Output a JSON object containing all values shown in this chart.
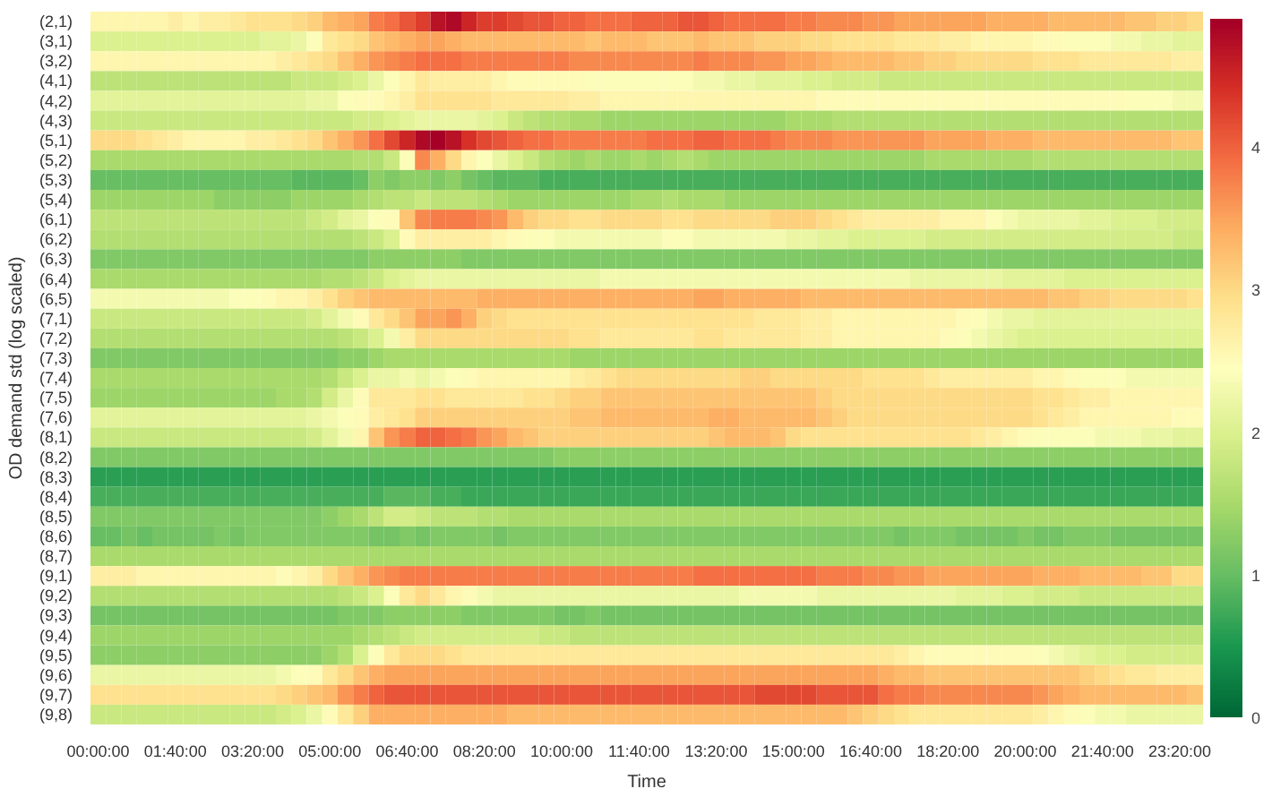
{
  "chart_data": {
    "type": "heatmap",
    "xlabel": "Time",
    "ylabel": "OD demand std (log scaled)",
    "categories": [
      "00:00:00",
      null,
      null,
      null,
      null,
      "01:40:00",
      null,
      null,
      null,
      null,
      "03:20:00",
      null,
      null,
      null,
      null,
      "05:00:00",
      null,
      null,
      null,
      null,
      "06:40:00",
      null,
      null,
      null,
      null,
      "08:20:00",
      null,
      null,
      null,
      null,
      "10:00:00",
      null,
      null,
      null,
      null,
      "11:40:00",
      null,
      null,
      null,
      null,
      "13:20:00",
      null,
      null,
      null,
      null,
      "15:00:00",
      null,
      null,
      null,
      null,
      "16:40:00",
      null,
      null,
      null,
      null,
      "18:20:00",
      null,
      null,
      null,
      null,
      "20:00:00",
      null,
      null,
      null,
      null,
      "21:40:00",
      null,
      null,
      null,
      null,
      "23:20:00",
      null
    ],
    "y_categories": [
      "(2,1)",
      "(3,1)",
      "(3,2)",
      "(4,1)",
      "(4,2)",
      "(4,3)",
      "(5,1)",
      "(5,2)",
      "(5,3)",
      "(5,4)",
      "(6,1)",
      "(6,2)",
      "(6,3)",
      "(6,4)",
      "(6,5)",
      "(7,1)",
      "(7,2)",
      "(7,3)",
      "(7,4)",
      "(7,5)",
      "(7,6)",
      "(8,1)",
      "(8,2)",
      "(8,3)",
      "(8,4)",
      "(8,5)",
      "(8,6)",
      "(8,7)",
      "(9,1)",
      "(9,2)",
      "(9,3)",
      "(9,4)",
      "(9,5)",
      "(9,6)",
      "(9,7)",
      "(9,8)"
    ],
    "clim": [
      0,
      4.9
    ],
    "cticks": [
      0,
      1,
      2,
      3,
      4
    ],
    "grid": false,
    "cells": [
      [
        2.6,
        2.6,
        2.6,
        2.6,
        2.6,
        2.7,
        2.6,
        2.7,
        2.7,
        2.8,
        2.9,
        2.9,
        2.9,
        3.0,
        3.1,
        3.3,
        3.4,
        3.5,
        3.8,
        3.9,
        4.1,
        4.3,
        4.7,
        4.8,
        4.5,
        4.3,
        4.3,
        4.2,
        4.1,
        4.1,
        4.0,
        4.0,
        3.9,
        3.9,
        3.9,
        4.0,
        4.0,
        4.0,
        4.1,
        4.1,
        4.0,
        3.9,
        3.9,
        3.9,
        3.9,
        3.8,
        3.8,
        3.7,
        3.7,
        3.7,
        3.6,
        3.6,
        3.5,
        3.5,
        3.5,
        3.5,
        3.5,
        3.5,
        3.4,
        3.4,
        3.4,
        3.4,
        3.3,
        3.3,
        3.3,
        3.3,
        3.3,
        3.2,
        3.2,
        3.1,
        3.1,
        3.0
      ],
      [
        2.0,
        2.0,
        2.0,
        2.0,
        2.0,
        2.0,
        2.0,
        2.0,
        2.0,
        2.0,
        2.0,
        2.1,
        2.1,
        2.2,
        2.4,
        2.8,
        2.9,
        3.0,
        3.2,
        3.3,
        3.4,
        3.5,
        3.5,
        3.4,
        3.3,
        3.3,
        3.3,
        3.3,
        3.3,
        3.3,
        3.3,
        3.3,
        3.2,
        3.3,
        3.3,
        3.3,
        3.2,
        3.2,
        3.2,
        3.3,
        3.2,
        3.2,
        3.2,
        3.1,
        3.1,
        3.1,
        3.0,
        3.0,
        2.9,
        2.9,
        2.9,
        2.9,
        2.8,
        2.8,
        2.8,
        2.7,
        2.7,
        2.6,
        2.6,
        2.6,
        2.6,
        2.5,
        2.5,
        2.4,
        2.4,
        2.4,
        2.3,
        2.3,
        2.2,
        2.2,
        2.1,
        2.1
      ],
      [
        2.6,
        2.6,
        2.6,
        2.6,
        2.6,
        2.6,
        2.6,
        2.6,
        2.6,
        2.6,
        2.6,
        2.6,
        2.7,
        2.8,
        2.9,
        3.0,
        3.2,
        3.4,
        3.6,
        3.7,
        3.8,
        3.9,
        3.9,
        3.9,
        3.8,
        3.8,
        3.8,
        3.8,
        3.8,
        3.8,
        3.8,
        3.7,
        3.7,
        3.7,
        3.7,
        3.7,
        3.7,
        3.7,
        3.7,
        3.8,
        3.7,
        3.7,
        3.7,
        3.6,
        3.6,
        3.5,
        3.5,
        3.4,
        3.3,
        3.3,
        3.3,
        3.3,
        3.2,
        3.2,
        3.1,
        3.1,
        3.0,
        3.0,
        3.0,
        3.0,
        3.0,
        2.9,
        2.9,
        2.9,
        2.8,
        2.8,
        2.8,
        2.8,
        2.8,
        2.8,
        2.7,
        2.7
      ],
      [
        1.7,
        1.7,
        1.7,
        1.7,
        1.7,
        1.7,
        1.7,
        1.7,
        1.7,
        1.7,
        1.7,
        1.7,
        1.7,
        1.8,
        1.8,
        1.8,
        1.9,
        2.0,
        2.2,
        2.4,
        2.6,
        2.8,
        2.7,
        2.7,
        2.7,
        2.7,
        2.6,
        2.5,
        2.5,
        2.5,
        2.5,
        2.5,
        2.4,
        2.4,
        2.4,
        2.4,
        2.4,
        2.4,
        2.4,
        2.3,
        2.3,
        2.2,
        2.2,
        2.1,
        2.1,
        2.1,
        2.0,
        2.0,
        1.9,
        1.9,
        1.9,
        1.8,
        1.8,
        1.8,
        1.8,
        1.8,
        1.8,
        1.8,
        1.8,
        1.8,
        1.8,
        1.8,
        1.8,
        1.8,
        1.8,
        1.8,
        1.8,
        1.8,
        1.8,
        1.8,
        1.8,
        1.8
      ],
      [
        2.1,
        2.1,
        2.1,
        2.1,
        2.1,
        2.1,
        2.1,
        2.1,
        2.1,
        2.1,
        2.1,
        2.1,
        2.1,
        2.1,
        2.2,
        2.2,
        2.4,
        2.5,
        2.5,
        2.6,
        2.7,
        2.9,
        2.9,
        2.9,
        2.9,
        2.9,
        2.8,
        2.8,
        2.8,
        2.8,
        2.8,
        2.7,
        2.7,
        2.6,
        2.6,
        2.6,
        2.6,
        2.6,
        2.6,
        2.6,
        2.6,
        2.6,
        2.6,
        2.6,
        2.6,
        2.6,
        2.6,
        2.5,
        2.5,
        2.5,
        2.5,
        2.5,
        2.5,
        2.5,
        2.5,
        2.5,
        2.5,
        2.5,
        2.5,
        2.5,
        2.5,
        2.5,
        2.5,
        2.5,
        2.5,
        2.5,
        2.5,
        2.4,
        2.4,
        2.4,
        2.3,
        2.3
      ],
      [
        1.8,
        1.8,
        1.8,
        1.8,
        1.8,
        1.8,
        1.8,
        1.8,
        1.8,
        1.8,
        1.8,
        1.8,
        1.8,
        1.8,
        1.8,
        1.8,
        1.8,
        1.9,
        1.9,
        2.0,
        2.1,
        2.2,
        2.2,
        2.2,
        2.2,
        2.1,
        2.0,
        1.8,
        1.7,
        1.6,
        1.6,
        1.5,
        1.5,
        1.4,
        1.4,
        1.4,
        1.4,
        1.4,
        1.4,
        1.4,
        1.4,
        1.4,
        1.4,
        1.4,
        1.4,
        1.5,
        1.5,
        1.5,
        1.6,
        1.6,
        1.6,
        1.6,
        1.6,
        1.6,
        1.6,
        1.6,
        1.6,
        1.6,
        1.6,
        1.6,
        1.6,
        1.6,
        1.6,
        1.6,
        1.6,
        1.6,
        1.6,
        1.6,
        1.6,
        1.6,
        1.6,
        1.6
      ],
      [
        3.0,
        3.0,
        3.0,
        2.9,
        2.8,
        2.7,
        2.6,
        2.6,
        2.6,
        2.6,
        2.7,
        2.7,
        2.8,
        2.9,
        3.0,
        3.2,
        3.4,
        3.6,
        3.9,
        4.2,
        4.5,
        4.8,
        4.9,
        4.7,
        4.4,
        4.2,
        4.1,
        4.0,
        3.9,
        3.9,
        3.8,
        3.8,
        3.8,
        3.8,
        3.8,
        3.8,
        3.9,
        3.9,
        3.9,
        4.0,
        4.0,
        3.9,
        3.9,
        3.9,
        3.8,
        3.7,
        3.7,
        3.7,
        3.6,
        3.6,
        3.6,
        3.6,
        3.6,
        3.6,
        3.5,
        3.5,
        3.5,
        3.5,
        3.4,
        3.4,
        3.4,
        3.3,
        3.3,
        3.3,
        3.3,
        3.3,
        3.3,
        3.3,
        3.3,
        3.3,
        3.2,
        3.2
      ],
      [
        1.5,
        1.5,
        1.5,
        1.5,
        1.5,
        1.5,
        1.5,
        1.5,
        1.5,
        1.5,
        1.5,
        1.5,
        1.5,
        1.5,
        1.5,
        1.5,
        1.5,
        1.6,
        1.6,
        1.8,
        2.4,
        3.7,
        3.4,
        3.0,
        2.6,
        2.4,
        2.2,
        2.0,
        1.8,
        1.6,
        1.5,
        1.4,
        1.5,
        1.4,
        1.4,
        1.5,
        1.4,
        1.5,
        1.6,
        1.5,
        1.4,
        1.4,
        1.4,
        1.4,
        1.4,
        1.4,
        1.4,
        1.4,
        1.4,
        1.4,
        1.4,
        1.4,
        1.4,
        1.4,
        1.5,
        1.5,
        1.5,
        1.5,
        1.5,
        1.5,
        1.5,
        1.6,
        1.6,
        1.6,
        1.6,
        1.6,
        1.6,
        1.6,
        1.6,
        1.6,
        1.6,
        1.6
      ],
      [
        1.0,
        1.0,
        1.0,
        1.0,
        1.0,
        1.0,
        1.0,
        1.0,
        1.0,
        1.0,
        1.0,
        1.0,
        1.0,
        0.9,
        0.9,
        0.9,
        0.9,
        1.0,
        1.3,
        1.2,
        1.3,
        1.3,
        1.2,
        1.3,
        1.1,
        1.0,
        0.9,
        0.9,
        0.9,
        0.8,
        0.8,
        0.8,
        0.8,
        0.8,
        0.8,
        0.8,
        0.8,
        0.8,
        0.8,
        0.8,
        0.8,
        0.8,
        0.8,
        0.8,
        0.8,
        0.8,
        0.8,
        0.8,
        0.8,
        0.8,
        0.8,
        0.8,
        0.8,
        0.8,
        0.8,
        0.8,
        0.8,
        0.8,
        0.8,
        0.8,
        0.8,
        0.8,
        0.8,
        0.8,
        0.8,
        0.8,
        0.8,
        0.8,
        0.8,
        0.8,
        0.8,
        0.8
      ],
      [
        1.4,
        1.4,
        1.4,
        1.4,
        1.4,
        1.4,
        1.4,
        1.4,
        1.3,
        1.3,
        1.3,
        1.3,
        1.3,
        1.4,
        1.4,
        1.4,
        1.4,
        1.5,
        1.6,
        1.7,
        1.7,
        1.8,
        1.7,
        1.7,
        1.7,
        1.6,
        1.5,
        1.4,
        1.4,
        1.4,
        1.4,
        1.4,
        1.4,
        1.4,
        1.4,
        1.5,
        1.5,
        1.6,
        1.5,
        1.5,
        1.5,
        1.4,
        1.4,
        1.4,
        1.4,
        1.4,
        1.4,
        1.4,
        1.4,
        1.4,
        1.4,
        1.4,
        1.4,
        1.4,
        1.4,
        1.4,
        1.4,
        1.4,
        1.4,
        1.4,
        1.4,
        1.4,
        1.4,
        1.4,
        1.4,
        1.4,
        1.4,
        1.4,
        1.4,
        1.4,
        1.4,
        1.4
      ],
      [
        1.7,
        1.7,
        1.7,
        1.7,
        1.7,
        1.7,
        1.7,
        1.7,
        1.7,
        1.7,
        1.7,
        1.7,
        1.7,
        1.7,
        1.8,
        1.9,
        2.1,
        2.2,
        2.4,
        2.5,
        3.2,
        3.7,
        3.8,
        3.8,
        3.8,
        3.7,
        3.6,
        3.3,
        3.1,
        3.0,
        3.0,
        2.9,
        2.9,
        3.0,
        3.0,
        3.0,
        3.0,
        2.9,
        2.9,
        3.0,
        3.0,
        3.0,
        3.0,
        3.0,
        3.1,
        3.1,
        3.1,
        3.0,
        2.9,
        2.8,
        2.7,
        2.7,
        2.7,
        2.7,
        2.7,
        2.6,
        2.6,
        2.6,
        2.4,
        2.3,
        2.2,
        2.2,
        2.2,
        2.2,
        2.1,
        2.1,
        2.0,
        2.0,
        2.0,
        1.9,
        1.9,
        1.9
      ],
      [
        1.6,
        1.6,
        1.6,
        1.6,
        1.6,
        1.6,
        1.6,
        1.6,
        1.6,
        1.6,
        1.6,
        1.6,
        1.6,
        1.6,
        1.6,
        1.6,
        1.6,
        1.7,
        1.8,
        2.0,
        2.5,
        2.7,
        2.7,
        2.7,
        2.7,
        2.7,
        2.6,
        2.5,
        2.4,
        2.4,
        2.3,
        2.3,
        2.3,
        2.3,
        2.3,
        2.3,
        2.3,
        2.4,
        2.4,
        2.3,
        2.3,
        2.3,
        2.3,
        2.3,
        2.3,
        2.2,
        2.2,
        2.1,
        2.1,
        2.0,
        2.0,
        2.0,
        2.0,
        2.0,
        1.9,
        1.9,
        1.9,
        1.9,
        1.9,
        1.9,
        1.9,
        1.9,
        1.9,
        1.9,
        1.9,
        1.9,
        1.9,
        1.9,
        1.9,
        1.9,
        1.8,
        1.8
      ],
      [
        1.2,
        1.2,
        1.2,
        1.2,
        1.2,
        1.2,
        1.2,
        1.2,
        1.2,
        1.2,
        1.2,
        1.2,
        1.2,
        1.2,
        1.2,
        1.2,
        1.2,
        1.2,
        1.3,
        1.3,
        1.3,
        1.3,
        1.3,
        1.3,
        1.2,
        1.2,
        1.2,
        1.2,
        1.2,
        1.2,
        1.2,
        1.2,
        1.2,
        1.2,
        1.2,
        1.2,
        1.2,
        1.2,
        1.2,
        1.2,
        1.2,
        1.2,
        1.2,
        1.2,
        1.2,
        1.2,
        1.2,
        1.2,
        1.2,
        1.2,
        1.2,
        1.2,
        1.2,
        1.2,
        1.2,
        1.2,
        1.2,
        1.2,
        1.2,
        1.2,
        1.2,
        1.2,
        1.2,
        1.2,
        1.2,
        1.2,
        1.2,
        1.2,
        1.2,
        1.2,
        1.2,
        1.2
      ],
      [
        1.5,
        1.5,
        1.5,
        1.5,
        1.5,
        1.5,
        1.5,
        1.5,
        1.5,
        1.5,
        1.5,
        1.5,
        1.5,
        1.5,
        1.5,
        1.6,
        1.6,
        1.7,
        1.8,
        2.0,
        2.1,
        2.2,
        2.2,
        2.2,
        2.2,
        2.2,
        2.2,
        2.2,
        2.2,
        2.2,
        2.2,
        2.2,
        2.2,
        2.3,
        2.3,
        2.3,
        2.3,
        2.3,
        2.3,
        2.3,
        2.3,
        2.3,
        2.3,
        2.3,
        2.3,
        2.3,
        2.3,
        2.3,
        2.3,
        2.3,
        2.3,
        2.3,
        2.3,
        2.2,
        2.2,
        2.2,
        2.2,
        2.2,
        2.2,
        2.1,
        2.1,
        2.1,
        2.1,
        2.0,
        2.0,
        2.0,
        2.0,
        2.0,
        2.0,
        2.0,
        2.0,
        2.0
      ],
      [
        2.3,
        2.3,
        2.3,
        2.3,
        2.3,
        2.3,
        2.3,
        2.3,
        2.3,
        2.4,
        2.4,
        2.5,
        2.6,
        2.6,
        2.7,
        2.9,
        3.1,
        3.2,
        3.3,
        3.3,
        3.3,
        3.3,
        3.3,
        3.3,
        3.3,
        3.4,
        3.4,
        3.4,
        3.4,
        3.4,
        3.4,
        3.4,
        3.4,
        3.4,
        3.4,
        3.4,
        3.4,
        3.4,
        3.4,
        3.5,
        3.5,
        3.4,
        3.4,
        3.4,
        3.4,
        3.4,
        3.3,
        3.3,
        3.3,
        3.3,
        3.3,
        3.3,
        3.3,
        3.3,
        3.3,
        3.3,
        3.3,
        3.3,
        3.3,
        3.3,
        3.3,
        3.3,
        3.2,
        3.2,
        3.1,
        3.1,
        3.0,
        3.0,
        3.0,
        3.0,
        3.0,
        2.9
      ],
      [
        1.8,
        1.8,
        1.8,
        1.8,
        1.8,
        1.8,
        1.8,
        1.8,
        1.8,
        1.8,
        1.8,
        1.8,
        1.8,
        1.8,
        1.9,
        2.1,
        2.3,
        2.5,
        2.8,
        3.0,
        3.2,
        3.5,
        3.5,
        3.6,
        3.4,
        3.1,
        3.0,
        2.9,
        2.9,
        2.9,
        2.9,
        2.9,
        2.9,
        2.9,
        2.9,
        2.9,
        2.9,
        2.9,
        2.9,
        2.9,
        2.9,
        2.9,
        2.9,
        2.8,
        2.8,
        2.8,
        2.7,
        2.7,
        2.6,
        2.6,
        2.6,
        2.6,
        2.6,
        2.6,
        2.6,
        2.6,
        2.5,
        2.4,
        2.3,
        2.2,
        2.2,
        2.1,
        2.1,
        2.1,
        2.1,
        2.1,
        2.1,
        2.1,
        2.1,
        2.1,
        2.1,
        2.1
      ],
      [
        1.6,
        1.6,
        1.6,
        1.6,
        1.6,
        1.6,
        1.6,
        1.6,
        1.6,
        1.6,
        1.6,
        1.6,
        1.6,
        1.6,
        1.6,
        1.6,
        1.7,
        1.8,
        2.0,
        2.3,
        2.7,
        3.0,
        3.0,
        3.0,
        3.0,
        3.0,
        3.0,
        3.0,
        3.0,
        3.0,
        3.0,
        2.9,
        2.9,
        2.8,
        2.8,
        2.8,
        2.8,
        2.8,
        2.8,
        2.9,
        2.9,
        2.8,
        2.8,
        2.8,
        2.8,
        2.8,
        2.7,
        2.7,
        2.6,
        2.6,
        2.6,
        2.6,
        2.6,
        2.6,
        2.6,
        2.5,
        2.4,
        2.3,
        2.2,
        2.1,
        2.0,
        2.0,
        2.0,
        2.0,
        2.0,
        2.0,
        2.0,
        2.0,
        2.0,
        2.0,
        2.0,
        2.0
      ],
      [
        1.2,
        1.2,
        1.2,
        1.2,
        1.2,
        1.2,
        1.2,
        1.2,
        1.2,
        1.2,
        1.2,
        1.2,
        1.2,
        1.2,
        1.2,
        1.2,
        1.3,
        1.3,
        1.4,
        1.5,
        1.5,
        1.5,
        1.5,
        1.5,
        1.5,
        1.5,
        1.5,
        1.5,
        1.5,
        1.5,
        1.5,
        1.4,
        1.4,
        1.4,
        1.4,
        1.4,
        1.4,
        1.4,
        1.4,
        1.4,
        1.4,
        1.4,
        1.4,
        1.4,
        1.4,
        1.4,
        1.4,
        1.4,
        1.4,
        1.4,
        1.4,
        1.4,
        1.4,
        1.4,
        1.4,
        1.4,
        1.4,
        1.4,
        1.4,
        1.4,
        1.4,
        1.4,
        1.4,
        1.4,
        1.4,
        1.4,
        1.4,
        1.4,
        1.4,
        1.4,
        1.4,
        1.4
      ],
      [
        1.5,
        1.5,
        1.5,
        1.5,
        1.5,
        1.5,
        1.5,
        1.5,
        1.5,
        1.5,
        1.5,
        1.5,
        1.5,
        1.5,
        1.5,
        1.6,
        1.8,
        2.0,
        2.2,
        2.2,
        2.3,
        2.2,
        2.3,
        2.4,
        2.5,
        2.6,
        2.6,
        2.6,
        2.6,
        2.6,
        2.6,
        2.7,
        2.8,
        2.9,
        3.0,
        3.0,
        3.0,
        3.0,
        3.0,
        3.0,
        3.0,
        3.0,
        3.1,
        3.1,
        3.0,
        3.0,
        3.0,
        3.0,
        3.0,
        3.0,
        2.9,
        2.9,
        2.9,
        2.9,
        2.8,
        2.7,
        2.7,
        2.7,
        2.7,
        2.7,
        2.7,
        2.6,
        2.6,
        2.5,
        2.4,
        2.4,
        2.4,
        2.3,
        2.3,
        2.3,
        2.3,
        2.3
      ],
      [
        1.4,
        1.4,
        1.4,
        1.4,
        1.4,
        1.4,
        1.4,
        1.4,
        1.4,
        1.4,
        1.4,
        1.4,
        1.5,
        1.5,
        1.6,
        1.9,
        2.2,
        2.5,
        2.8,
        2.8,
        2.8,
        2.9,
        2.9,
        2.8,
        2.8,
        2.8,
        2.8,
        2.8,
        2.9,
        2.9,
        3.0,
        3.1,
        3.1,
        3.2,
        3.2,
        3.2,
        3.2,
        3.2,
        3.2,
        3.2,
        3.2,
        3.2,
        3.2,
        3.2,
        3.2,
        3.2,
        3.2,
        3.1,
        3.0,
        3.0,
        3.0,
        3.0,
        3.0,
        3.0,
        3.0,
        3.0,
        3.0,
        3.0,
        3.0,
        3.0,
        3.0,
        2.9,
        2.9,
        2.8,
        2.7,
        2.7,
        2.6,
        2.6,
        2.6,
        2.6,
        2.6,
        2.6
      ],
      [
        2.1,
        2.1,
        2.1,
        2.1,
        2.1,
        2.1,
        2.1,
        2.1,
        2.1,
        2.1,
        2.1,
        2.1,
        2.1,
        2.1,
        2.2,
        2.3,
        2.4,
        2.5,
        2.7,
        2.8,
        2.9,
        3.1,
        3.1,
        3.1,
        3.1,
        3.1,
        3.1,
        3.1,
        3.1,
        3.1,
        3.1,
        3.2,
        3.2,
        3.3,
        3.3,
        3.3,
        3.3,
        3.3,
        3.3,
        3.3,
        3.4,
        3.4,
        3.3,
        3.3,
        3.3,
        3.3,
        3.3,
        3.2,
        3.1,
        3.0,
        3.0,
        3.0,
        3.0,
        3.0,
        3.0,
        3.0,
        3.0,
        3.0,
        3.0,
        3.0,
        3.0,
        2.9,
        2.8,
        2.7,
        2.6,
        2.6,
        2.6,
        2.6,
        2.6,
        2.6,
        2.5,
        2.5
      ],
      [
        1.8,
        1.8,
        1.8,
        1.8,
        1.8,
        1.8,
        1.8,
        1.8,
        1.8,
        1.8,
        1.8,
        1.8,
        1.8,
        1.8,
        1.9,
        2.1,
        2.3,
        2.6,
        3.2,
        3.6,
        3.8,
        4.0,
        4.0,
        3.9,
        3.8,
        3.6,
        3.5,
        3.3,
        3.2,
        3.1,
        3.1,
        3.1,
        3.1,
        3.1,
        3.1,
        3.1,
        3.1,
        3.1,
        3.1,
        3.1,
        3.2,
        3.3,
        3.3,
        3.3,
        3.2,
        3.0,
        2.9,
        2.9,
        2.9,
        2.9,
        2.9,
        2.9,
        2.9,
        2.9,
        2.9,
        2.9,
        2.9,
        2.8,
        2.7,
        2.6,
        2.5,
        2.4,
        2.4,
        2.4,
        2.4,
        2.3,
        2.3,
        2.3,
        2.2,
        2.2,
        2.1,
        2.1
      ],
      [
        1.2,
        1.2,
        1.2,
        1.2,
        1.2,
        1.2,
        1.2,
        1.2,
        1.2,
        1.2,
        1.2,
        1.2,
        1.2,
        1.2,
        1.2,
        1.2,
        1.2,
        1.2,
        1.2,
        1.2,
        1.2,
        1.2,
        1.2,
        1.2,
        1.2,
        1.2,
        1.2,
        1.2,
        1.2,
        1.2,
        1.3,
        1.3,
        1.3,
        1.3,
        1.3,
        1.3,
        1.3,
        1.3,
        1.3,
        1.3,
        1.3,
        1.3,
        1.3,
        1.3,
        1.3,
        1.3,
        1.3,
        1.3,
        1.3,
        1.3,
        1.3,
        1.3,
        1.3,
        1.3,
        1.3,
        1.3,
        1.3,
        1.3,
        1.3,
        1.3,
        1.3,
        1.3,
        1.3,
        1.3,
        1.3,
        1.3,
        1.3,
        1.3,
        1.3,
        1.3,
        1.3,
        1.3
      ],
      [
        0.6,
        0.6,
        0.6,
        0.6,
        0.6,
        0.6,
        0.6,
        0.6,
        0.6,
        0.6,
        0.6,
        0.6,
        0.6,
        0.6,
        0.6,
        0.6,
        0.6,
        0.6,
        0.6,
        0.6,
        0.6,
        0.6,
        0.6,
        0.6,
        0.6,
        0.6,
        0.6,
        0.6,
        0.6,
        0.6,
        0.6,
        0.6,
        0.6,
        0.6,
        0.6,
        0.6,
        0.6,
        0.6,
        0.6,
        0.6,
        0.6,
        0.6,
        0.6,
        0.6,
        0.6,
        0.6,
        0.6,
        0.6,
        0.6,
        0.6,
        0.6,
        0.6,
        0.6,
        0.6,
        0.6,
        0.6,
        0.6,
        0.6,
        0.6,
        0.6,
        0.6,
        0.6,
        0.6,
        0.6,
        0.6,
        0.6,
        0.6,
        0.6,
        0.6,
        0.6,
        0.6,
        0.6
      ],
      [
        0.8,
        0.8,
        0.8,
        0.8,
        0.8,
        0.8,
        0.8,
        0.8,
        0.8,
        0.8,
        0.8,
        0.8,
        0.8,
        0.8,
        0.8,
        0.8,
        0.8,
        0.8,
        0.8,
        0.9,
        0.9,
        0.9,
        0.8,
        0.8,
        0.7,
        0.7,
        0.7,
        0.7,
        0.7,
        0.7,
        0.7,
        0.7,
        0.7,
        0.7,
        0.7,
        0.7,
        0.7,
        0.7,
        0.7,
        0.7,
        0.7,
        0.7,
        0.7,
        0.7,
        0.7,
        0.7,
        0.7,
        0.7,
        0.7,
        0.7,
        0.7,
        0.7,
        0.7,
        0.7,
        0.7,
        0.7,
        0.7,
        0.7,
        0.7,
        0.7,
        0.7,
        0.7,
        0.7,
        0.7,
        0.7,
        0.7,
        0.7,
        0.7,
        0.7,
        0.7,
        0.7,
        0.7
      ],
      [
        1.2,
        1.2,
        1.2,
        1.2,
        1.2,
        1.2,
        1.2,
        1.2,
        1.2,
        1.2,
        1.2,
        1.2,
        1.2,
        1.2,
        1.2,
        1.3,
        1.4,
        1.5,
        1.7,
        1.9,
        1.9,
        1.8,
        1.7,
        1.7,
        1.7,
        1.6,
        1.6,
        1.5,
        1.5,
        1.5,
        1.5,
        1.5,
        1.5,
        1.5,
        1.5,
        1.5,
        1.5,
        1.5,
        1.5,
        1.5,
        1.5,
        1.5,
        1.5,
        1.5,
        1.5,
        1.5,
        1.5,
        1.5,
        1.5,
        1.5,
        1.5,
        1.5,
        1.5,
        1.5,
        1.5,
        1.5,
        1.5,
        1.5,
        1.5,
        1.5,
        1.5,
        1.5,
        1.5,
        1.5,
        1.5,
        1.5,
        1.5,
        1.5,
        1.5,
        1.5,
        1.5,
        1.5
      ],
      [
        1.0,
        1.0,
        1.1,
        1.0,
        1.1,
        1.1,
        1.1,
        1.1,
        1.2,
        1.1,
        1.2,
        1.2,
        1.2,
        1.2,
        1.2,
        1.2,
        1.2,
        1.2,
        1.1,
        1.1,
        1.2,
        1.1,
        1.2,
        1.2,
        1.2,
        1.2,
        1.1,
        1.2,
        1.2,
        1.2,
        1.2,
        1.2,
        1.2,
        1.2,
        1.2,
        1.2,
        1.2,
        1.2,
        1.2,
        1.2,
        1.2,
        1.2,
        1.2,
        1.2,
        1.2,
        1.2,
        1.2,
        1.2,
        1.2,
        1.2,
        1.2,
        1.2,
        1.1,
        1.2,
        1.2,
        1.2,
        1.1,
        1.1,
        1.1,
        1.1,
        1.2,
        1.1,
        1.1,
        1.2,
        1.2,
        1.2,
        1.1,
        1.1,
        1.1,
        1.1,
        1.1,
        1.1
      ],
      [
        1.5,
        1.5,
        1.5,
        1.5,
        1.5,
        1.5,
        1.5,
        1.5,
        1.5,
        1.5,
        1.5,
        1.5,
        1.5,
        1.5,
        1.5,
        1.5,
        1.5,
        1.5,
        1.5,
        1.5,
        1.5,
        1.5,
        1.5,
        1.5,
        1.5,
        1.5,
        1.5,
        1.5,
        1.5,
        1.5,
        1.5,
        1.5,
        1.5,
        1.5,
        1.5,
        1.5,
        1.5,
        1.5,
        1.5,
        1.5,
        1.5,
        1.5,
        1.5,
        1.5,
        1.5,
        1.5,
        1.5,
        1.5,
        1.5,
        1.5,
        1.5,
        1.5,
        1.5,
        1.5,
        1.5,
        1.5,
        1.5,
        1.5,
        1.5,
        1.5,
        1.5,
        1.5,
        1.5,
        1.5,
        1.5,
        1.5,
        1.5,
        1.5,
        1.5,
        1.5,
        1.5,
        1.5
      ],
      [
        2.7,
        2.7,
        2.7,
        2.6,
        2.6,
        2.6,
        2.6,
        2.6,
        2.6,
        2.6,
        2.6,
        2.6,
        2.5,
        2.6,
        2.7,
        3.0,
        3.2,
        3.4,
        3.6,
        3.7,
        3.8,
        3.8,
        3.8,
        3.8,
        3.8,
        3.8,
        3.8,
        3.8,
        3.8,
        3.8,
        3.8,
        3.8,
        3.8,
        3.8,
        3.8,
        3.8,
        3.8,
        3.8,
        3.8,
        3.9,
        3.9,
        3.9,
        3.9,
        3.9,
        3.9,
        3.9,
        3.9,
        3.8,
        3.8,
        3.8,
        3.7,
        3.7,
        3.6,
        3.6,
        3.5,
        3.5,
        3.5,
        3.5,
        3.5,
        3.5,
        3.5,
        3.4,
        3.4,
        3.4,
        3.3,
        3.3,
        3.3,
        3.3,
        3.2,
        3.2,
        3.0,
        3.0
      ],
      [
        1.6,
        1.6,
        1.6,
        1.6,
        1.6,
        1.6,
        1.6,
        1.6,
        1.6,
        1.6,
        1.6,
        1.6,
        1.6,
        1.6,
        1.6,
        1.6,
        1.7,
        1.8,
        2.0,
        2.4,
        2.8,
        3.0,
        2.8,
        2.6,
        2.5,
        2.3,
        2.2,
        2.2,
        2.2,
        2.2,
        2.2,
        2.2,
        2.2,
        2.2,
        2.2,
        2.2,
        2.2,
        2.2,
        2.2,
        2.2,
        2.2,
        2.2,
        2.3,
        2.3,
        2.3,
        2.3,
        2.3,
        2.2,
        2.2,
        2.2,
        2.2,
        2.2,
        2.2,
        2.2,
        2.2,
        2.2,
        2.1,
        2.1,
        2.1,
        2.0,
        2.0,
        1.9,
        1.9,
        1.9,
        1.8,
        1.8,
        1.8,
        1.8,
        1.8,
        1.8,
        1.8,
        1.8
      ],
      [
        1.1,
        1.1,
        1.1,
        1.1,
        1.1,
        1.1,
        1.1,
        1.1,
        1.1,
        1.1,
        1.1,
        1.1,
        1.1,
        1.1,
        1.1,
        1.1,
        1.2,
        1.2,
        1.2,
        1.3,
        1.3,
        1.3,
        1.3,
        1.3,
        1.2,
        1.2,
        1.2,
        1.2,
        1.2,
        1.2,
        1.1,
        1.1,
        1.2,
        1.1,
        1.1,
        1.1,
        1.1,
        1.1,
        1.1,
        1.1,
        1.1,
        1.1,
        1.1,
        1.1,
        1.1,
        1.1,
        1.1,
        1.1,
        1.1,
        1.1,
        1.1,
        1.1,
        1.1,
        1.1,
        1.1,
        1.1,
        1.1,
        1.1,
        1.1,
        1.1,
        1.1,
        1.1,
        1.1,
        1.1,
        1.1,
        1.1,
        1.1,
        1.1,
        1.1,
        1.1,
        1.1,
        1.1
      ],
      [
        1.4,
        1.4,
        1.4,
        1.4,
        1.4,
        1.4,
        1.4,
        1.4,
        1.4,
        1.4,
        1.4,
        1.4,
        1.4,
        1.4,
        1.4,
        1.4,
        1.4,
        1.5,
        1.6,
        1.7,
        1.8,
        1.9,
        1.9,
        1.9,
        1.9,
        1.9,
        1.9,
        1.9,
        1.9,
        1.8,
        1.8,
        1.7,
        1.7,
        1.7,
        1.7,
        1.7,
        1.7,
        1.7,
        1.7,
        1.7,
        1.7,
        1.7,
        1.7,
        1.7,
        1.7,
        1.7,
        1.7,
        1.7,
        1.7,
        1.7,
        1.7,
        1.7,
        1.7,
        1.7,
        1.7,
        1.7,
        1.7,
        1.7,
        1.7,
        1.7,
        1.7,
        1.7,
        1.7,
        1.7,
        1.7,
        1.7,
        1.7,
        1.7,
        1.7,
        1.7,
        1.7,
        1.7
      ],
      [
        1.3,
        1.3,
        1.3,
        1.3,
        1.3,
        1.3,
        1.3,
        1.3,
        1.3,
        1.3,
        1.3,
        1.3,
        1.3,
        1.3,
        1.3,
        1.4,
        1.6,
        2.0,
        2.4,
        2.8,
        3.0,
        3.0,
        3.0,
        2.9,
        2.8,
        2.8,
        2.8,
        2.8,
        2.8,
        2.8,
        2.8,
        2.8,
        2.8,
        2.8,
        2.8,
        2.8,
        2.8,
        2.8,
        2.8,
        2.8,
        2.8,
        2.8,
        2.8,
        2.8,
        2.8,
        2.8,
        2.8,
        2.8,
        2.8,
        2.8,
        2.8,
        2.8,
        2.7,
        2.6,
        2.5,
        2.5,
        2.5,
        2.5,
        2.5,
        2.5,
        2.5,
        2.4,
        2.3,
        2.2,
        2.1,
        2.0,
        2.0,
        1.9,
        1.9,
        1.9,
        1.9,
        1.9
      ],
      [
        2.2,
        2.2,
        2.2,
        2.2,
        2.2,
        2.2,
        2.2,
        2.2,
        2.2,
        2.2,
        2.2,
        2.2,
        2.3,
        2.4,
        2.5,
        2.8,
        3.0,
        3.2,
        3.4,
        3.5,
        3.5,
        3.5,
        3.5,
        3.5,
        3.5,
        3.5,
        3.5,
        3.5,
        3.5,
        3.5,
        3.5,
        3.5,
        3.5,
        3.5,
        3.5,
        3.5,
        3.5,
        3.5,
        3.5,
        3.5,
        3.5,
        3.5,
        3.5,
        3.5,
        3.5,
        3.5,
        3.5,
        3.5,
        3.5,
        3.5,
        3.5,
        3.4,
        3.3,
        3.3,
        3.2,
        3.2,
        3.2,
        3.2,
        3.2,
        3.2,
        3.2,
        3.2,
        3.2,
        3.2,
        3.1,
        3.0,
        2.9,
        2.8,
        2.8,
        2.7,
        2.7,
        2.7
      ],
      [
        2.9,
        2.9,
        2.9,
        2.9,
        2.9,
        2.9,
        2.9,
        2.9,
        2.9,
        2.9,
        2.9,
        2.9,
        3.0,
        3.1,
        3.2,
        3.3,
        3.6,
        3.8,
        4.0,
        4.1,
        4.1,
        4.1,
        4.1,
        4.1,
        4.1,
        4.1,
        4.1,
        4.1,
        4.1,
        4.1,
        4.1,
        4.1,
        4.1,
        4.1,
        4.1,
        4.1,
        4.1,
        4.1,
        4.1,
        4.1,
        4.1,
        4.1,
        4.1,
        4.2,
        4.2,
        4.2,
        4.2,
        4.1,
        4.1,
        4.1,
        4.1,
        3.9,
        3.8,
        3.8,
        3.7,
        3.7,
        3.7,
        3.7,
        3.7,
        3.7,
        3.7,
        3.6,
        3.5,
        3.4,
        3.3,
        3.3,
        3.3,
        3.3,
        3.3,
        3.3,
        3.3,
        3.2
      ],
      [
        1.8,
        1.8,
        1.8,
        1.8,
        1.8,
        1.8,
        1.8,
        1.8,
        1.8,
        1.8,
        1.8,
        1.8,
        1.9,
        2.0,
        2.2,
        2.5,
        2.8,
        3.1,
        3.4,
        3.4,
        3.4,
        3.4,
        3.4,
        3.4,
        3.4,
        3.4,
        3.4,
        3.3,
        3.3,
        3.3,
        3.3,
        3.3,
        3.3,
        3.3,
        3.3,
        3.3,
        3.3,
        3.3,
        3.3,
        3.3,
        3.3,
        3.3,
        3.3,
        3.3,
        3.3,
        3.3,
        3.3,
        3.3,
        3.3,
        3.2,
        3.1,
        3.0,
        2.9,
        2.8,
        2.8,
        2.8,
        2.8,
        2.8,
        2.8,
        2.8,
        2.8,
        2.7,
        2.6,
        2.5,
        2.4,
        2.3,
        2.3,
        2.2,
        2.2,
        2.2,
        2.2,
        2.2
      ]
    ]
  }
}
